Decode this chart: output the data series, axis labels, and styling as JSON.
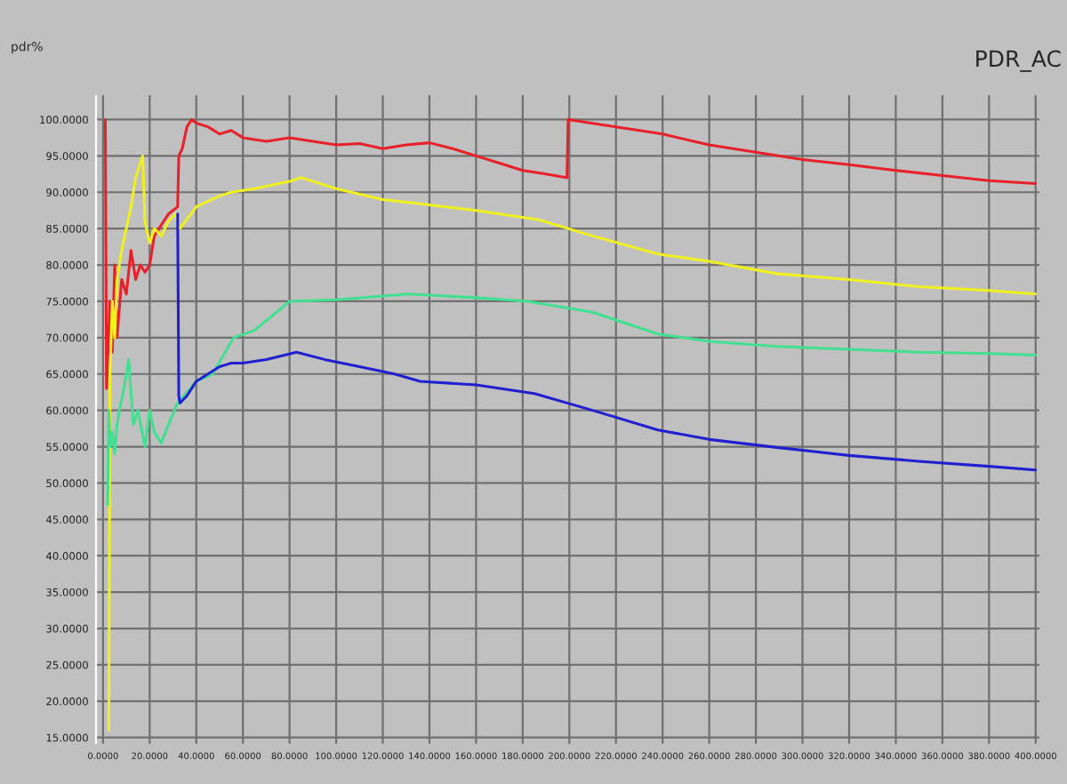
{
  "chart_data": {
    "type": "line",
    "title": "PDR_AC",
    "ylabel": "pdr%",
    "xlim": [
      -3,
      402
    ],
    "ylim": [
      14,
      103.5
    ],
    "xticks": [
      {
        "value": 0,
        "label": "0.0000"
      },
      {
        "value": 20,
        "label": "20.0000"
      },
      {
        "value": 40,
        "label": "40.0000"
      },
      {
        "value": 60,
        "label": "60.0000"
      },
      {
        "value": 80,
        "label": "80.0000"
      },
      {
        "value": 100,
        "label": "100.0000"
      },
      {
        "value": 120,
        "label": "120.0000"
      },
      {
        "value": 140,
        "label": "140.0000"
      },
      {
        "value": 160,
        "label": "160.0000"
      },
      {
        "value": 180,
        "label": "180.0000"
      },
      {
        "value": 200,
        "label": "200.0000"
      },
      {
        "value": 220,
        "label": "220.0000"
      },
      {
        "value": 240,
        "label": "240.0000"
      },
      {
        "value": 260,
        "label": "260.0000"
      },
      {
        "value": 280,
        "label": "280.0000"
      },
      {
        "value": 300,
        "label": "300.0000"
      },
      {
        "value": 320,
        "label": "320.0000"
      },
      {
        "value": 340,
        "label": "340.0000"
      },
      {
        "value": 360,
        "label": "360.0000"
      },
      {
        "value": 380,
        "label": "380.0000"
      },
      {
        "value": 400,
        "label": "400.0000"
      }
    ],
    "yticks": [
      {
        "value": 15,
        "label": "15.0000"
      },
      {
        "value": 20,
        "label": "20.0000"
      },
      {
        "value": 25,
        "label": "25.0000"
      },
      {
        "value": 30,
        "label": "30.0000"
      },
      {
        "value": 35,
        "label": "35.0000"
      },
      {
        "value": 40,
        "label": "40.0000"
      },
      {
        "value": 45,
        "label": "45.0000"
      },
      {
        "value": 50,
        "label": "50.0000"
      },
      {
        "value": 55,
        "label": "55.0000"
      },
      {
        "value": 60,
        "label": "60.0000"
      },
      {
        "value": 65,
        "label": "65.0000"
      },
      {
        "value": 70,
        "label": "70.0000"
      },
      {
        "value": 75,
        "label": "75.0000"
      },
      {
        "value": 80,
        "label": "80.0000"
      },
      {
        "value": 85,
        "label": "85.0000"
      },
      {
        "value": 90,
        "label": "90.0000"
      },
      {
        "value": 95,
        "label": "95.0000"
      },
      {
        "value": 100,
        "label": "100.0000"
      }
    ],
    "grid": true,
    "legend": false,
    "series": [
      {
        "color": "#e8202a",
        "x": [
          1,
          1.5,
          3,
          4,
          5,
          6,
          8,
          10,
          12,
          14,
          16,
          18,
          20,
          22,
          24,
          26,
          28,
          30,
          32,
          32.5,
          34,
          36,
          38,
          40,
          45,
          50,
          55,
          60,
          70,
          80,
          90,
          100,
          110,
          120,
          130,
          140,
          150,
          160,
          170,
          180,
          190,
          199,
          199.5,
          220,
          240,
          260,
          280,
          300,
          320,
          340,
          360,
          380,
          400
        ],
        "values": [
          100,
          63,
          75,
          68,
          80,
          70,
          78,
          76,
          82,
          78,
          80,
          79,
          80,
          84,
          85,
          86,
          87,
          87.5,
          88,
          95,
          96,
          99,
          100,
          99.5,
          99,
          98,
          98.5,
          97.5,
          97,
          97.5,
          97,
          96.5,
          96.7,
          96,
          96.5,
          96.8,
          96,
          95,
          94,
          93,
          92.5,
          92,
          100,
          99,
          98,
          96.5,
          95.5,
          94.5,
          93.8,
          93,
          92.3,
          91.6,
          91.2
        ]
      },
      {
        "color": "#f0f020",
        "x": [
          2.5,
          3,
          4,
          5,
          6,
          8,
          10,
          12,
          14,
          16,
          17,
          18,
          20,
          22,
          25,
          28,
          31,
          33,
          40,
          50,
          55,
          65,
          80,
          85,
          100,
          120,
          136,
          160,
          187,
          210,
          238,
          260,
          289,
          320,
          350,
          380,
          400
        ],
        "values": [
          16,
          65,
          75,
          70,
          78,
          82,
          85,
          88,
          92,
          94,
          95,
          86,
          83,
          85,
          84,
          86,
          87,
          85,
          88,
          89.5,
          90,
          90.5,
          91.5,
          92,
          90.5,
          89,
          88.4,
          87.5,
          86.2,
          84,
          81.5,
          80.5,
          78.8,
          78,
          77,
          76.5,
          76
        ]
      },
      {
        "color": "#40e090",
        "x": [
          2,
          2.5,
          3,
          4,
          5,
          6,
          7,
          9,
          11,
          13,
          15,
          18,
          20,
          22,
          25,
          28,
          32,
          40,
          47,
          56,
          65,
          80,
          100,
          131,
          160,
          182,
          210,
          238,
          260,
          289,
          320,
          350,
          380,
          400
        ],
        "values": [
          47,
          60,
          55,
          57,
          54,
          58,
          60,
          63,
          67,
          58,
          60,
          55,
          60,
          57,
          55.5,
          58,
          61,
          64,
          65,
          70,
          71,
          75,
          75.2,
          76,
          75.5,
          75,
          73.5,
          70.5,
          69.5,
          68.8,
          68.4,
          68,
          67.8,
          67.6
        ]
      },
      {
        "color": "#2020d0",
        "x": [
          32,
          32.5,
          33,
          36,
          40,
          45,
          50,
          55,
          60,
          70,
          83,
          95,
          110,
          125,
          136,
          160,
          185,
          210,
          238,
          260,
          289,
          320,
          350,
          380,
          400
        ],
        "values": [
          87,
          62,
          61,
          62,
          64,
          65,
          66,
          66.5,
          66.5,
          67,
          68,
          67,
          66,
          65,
          64,
          63.5,
          62.3,
          60,
          57.3,
          56,
          54.9,
          53.8,
          53,
          52.3,
          51.8
        ]
      }
    ]
  }
}
